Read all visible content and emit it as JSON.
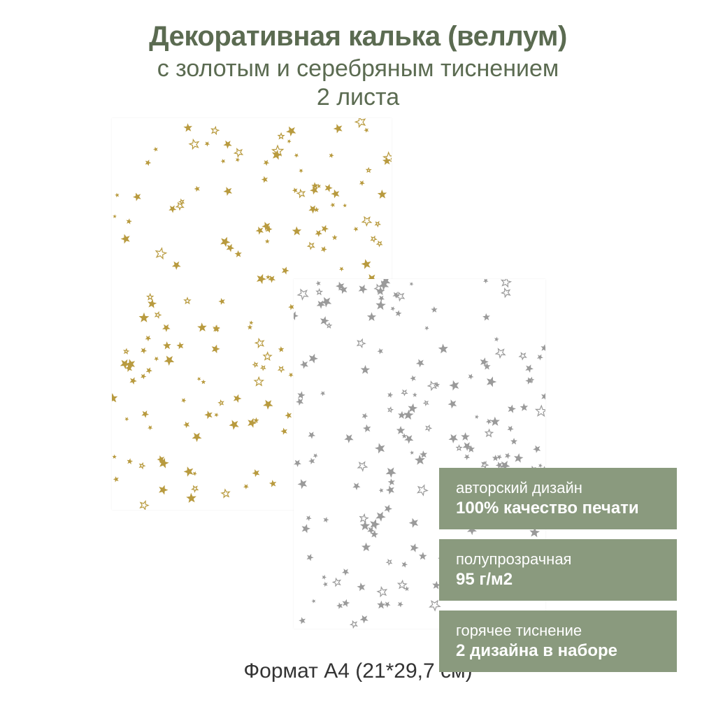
{
  "header": {
    "title": "Декоративная калька (веллум)",
    "subtitle": "с золотым и серебряным тиснением",
    "count": "2 листа"
  },
  "sheets": {
    "gold": {
      "color": "#b89a3e",
      "bg": "#ffffff"
    },
    "silver": {
      "color": "#9a9a9a",
      "bg": "#ffffff"
    }
  },
  "badges": [
    {
      "line1": "авторский дизайн",
      "line2": "100% качество печати"
    },
    {
      "line1": "полупрозрачная",
      "line2": "95 г/м2"
    },
    {
      "line1": "горячее тиснение",
      "line2": "2 дизайна в наборе"
    }
  ],
  "badge_style": {
    "bg": "#8a9a7e",
    "text_color": "#ffffff",
    "line1_fontsize": 22,
    "line2_fontsize": 24
  },
  "footer": "Формат А4 (21*29,7 см)",
  "colors": {
    "heading": "#5b6b51",
    "footer": "#333333",
    "page_bg": "#ffffff"
  },
  "typography": {
    "title_fontsize": 40,
    "title_weight": 900,
    "subtitle_fontsize": 34,
    "footer_fontsize": 30
  },
  "star_pattern": {
    "density": 180,
    "size_min": 6,
    "size_max": 16,
    "seed_gold": 17,
    "seed_silver": 31
  }
}
